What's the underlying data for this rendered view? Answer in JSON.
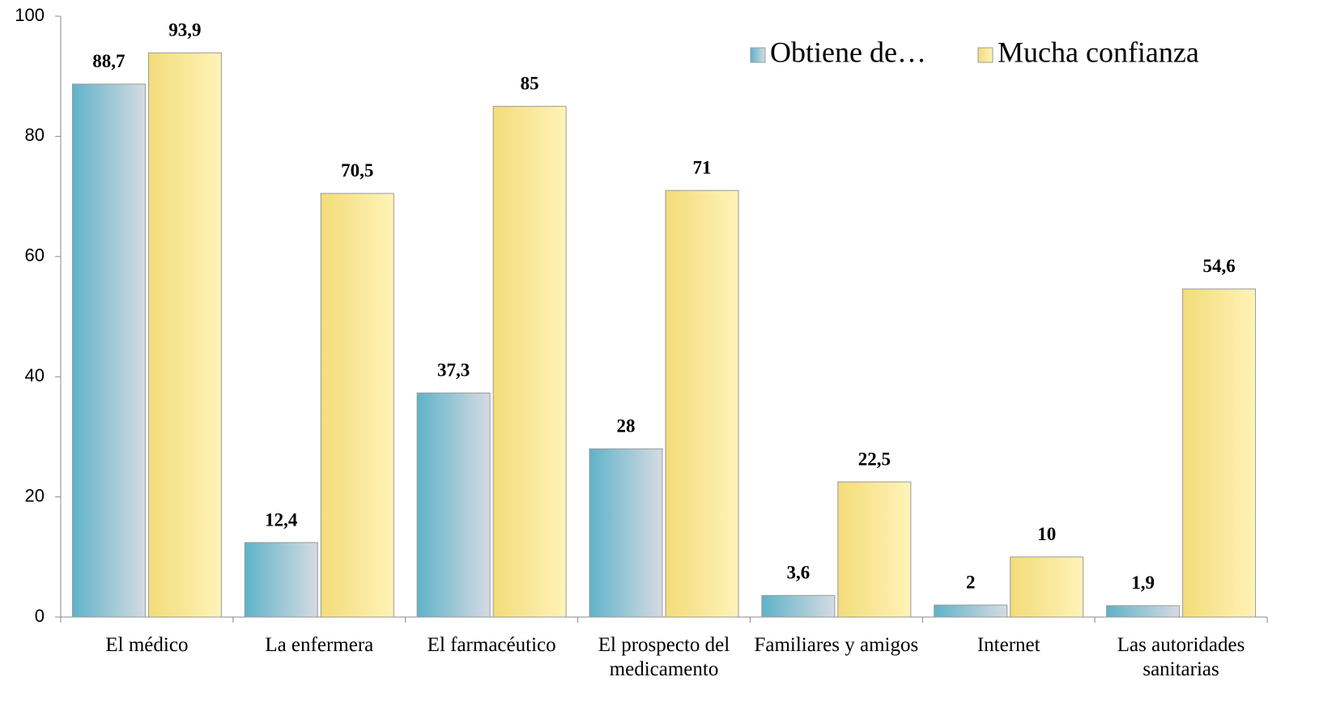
{
  "chart_data": {
    "type": "bar",
    "categories": [
      "El médico",
      "La enfermera",
      "El farmacéutico",
      "El prospecto del medicamento",
      "Familiares y amigos",
      "Internet",
      "Las autoridades sanitarias"
    ],
    "series": [
      {
        "name": "Obtiene de…",
        "color": "#5fb3c9",
        "values": [
          88.7,
          12.4,
          37.3,
          28,
          3.6,
          2,
          1.9
        ],
        "value_labels": [
          "88,7",
          "12,4",
          "37,3",
          "28",
          "3,6",
          "2",
          "1,9"
        ]
      },
      {
        "name": "Mucha confianza",
        "color": "#f3dc7a",
        "values": [
          93.9,
          70.5,
          85,
          71,
          22.5,
          10,
          54.6
        ],
        "value_labels": [
          "93,9",
          "70,5",
          "85",
          "71",
          "22,5",
          "10",
          "54,6"
        ]
      }
    ],
    "ylim": [
      0,
      100
    ],
    "yticks": [
      0,
      20,
      40,
      60,
      80,
      100
    ],
    "grid": false,
    "legend": "top-right"
  }
}
